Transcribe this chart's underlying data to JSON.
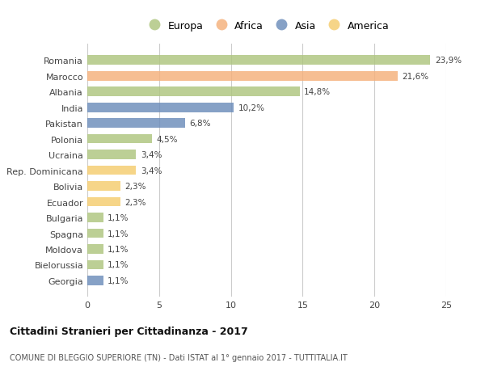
{
  "countries": [
    "Romania",
    "Marocco",
    "Albania",
    "India",
    "Pakistan",
    "Polonia",
    "Ucraina",
    "Rep. Dominicana",
    "Bolivia",
    "Ecuador",
    "Bulgaria",
    "Spagna",
    "Moldova",
    "Bielorussia",
    "Georgia"
  ],
  "values": [
    23.9,
    21.6,
    14.8,
    10.2,
    6.8,
    4.5,
    3.4,
    3.4,
    2.3,
    2.3,
    1.1,
    1.1,
    1.1,
    1.1,
    1.1
  ],
  "labels": [
    "23,9%",
    "21,6%",
    "14,8%",
    "10,2%",
    "6,8%",
    "4,5%",
    "3,4%",
    "3,4%",
    "2,3%",
    "2,3%",
    "1,1%",
    "1,1%",
    "1,1%",
    "1,1%",
    "1,1%"
  ],
  "continents": [
    "Europa",
    "Africa",
    "Europa",
    "Asia",
    "Asia",
    "Europa",
    "Europa",
    "America",
    "America",
    "America",
    "Europa",
    "Europa",
    "Europa",
    "Europa",
    "Asia"
  ],
  "colors": {
    "Europa": "#aec57e",
    "Africa": "#f5b07a",
    "Asia": "#6b8cba",
    "America": "#f5cc6e"
  },
  "legend_order": [
    "Europa",
    "Africa",
    "Asia",
    "America"
  ],
  "xlim": [
    0,
    25
  ],
  "xticks": [
    0,
    5,
    10,
    15,
    20,
    25
  ],
  "title": "Cittadini Stranieri per Cittadinanza - 2017",
  "subtitle": "COMUNE DI BLEGGIO SUPERIORE (TN) - Dati ISTAT al 1° gennaio 2017 - TUTTITALIA.IT",
  "bg_color": "#ffffff",
  "grid_color": "#cccccc",
  "bar_height": 0.6,
  "bar_alpha": 0.82
}
